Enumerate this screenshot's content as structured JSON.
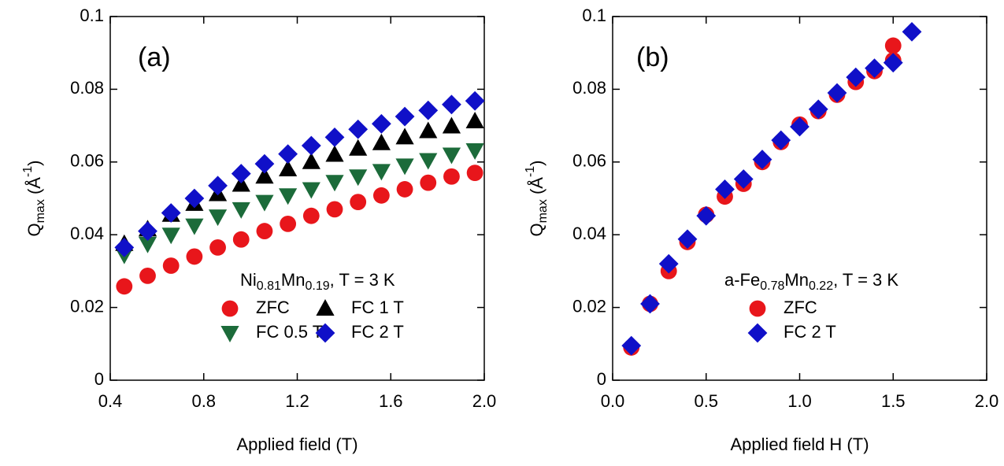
{
  "chart_data": [
    {
      "type": "scatter",
      "annotation": "(a)",
      "x_label": "Applied field (T)",
      "y_label": [
        {
          "text": "Q"
        },
        {
          "text": "max",
          "sub": true
        },
        {
          "text": " (Å"
        },
        {
          "text": "-1",
          "sup": true
        },
        {
          "text": ")"
        }
      ],
      "legend_title": [
        {
          "text": "Ni"
        },
        {
          "text": "0.81",
          "sub": true
        },
        {
          "text": "Mn"
        },
        {
          "text": "0.19",
          "sub": true
        },
        {
          "text": ", T = 3 K"
        }
      ],
      "xlim": [
        0.4,
        2.0
      ],
      "ylim": [
        0,
        0.1
      ],
      "xticks": [
        0.4,
        0.8,
        1.2,
        1.6,
        {
          "value": 2.0,
          "label": "2.0"
        }
      ],
      "yticks": [
        0,
        0.02,
        0.04,
        0.06,
        0.08,
        0.1
      ],
      "series": [
        {
          "name": "ZFC",
          "color": "#e8161b",
          "marker": "circle",
          "x": [
            0.46,
            0.56,
            0.66,
            0.76,
            0.86,
            0.96,
            1.06,
            1.16,
            1.26,
            1.36,
            1.46,
            1.56,
            1.66,
            1.76,
            1.86,
            1.96
          ],
          "values": [
            0.0258,
            0.0287,
            0.0315,
            0.034,
            0.0365,
            0.0387,
            0.041,
            0.043,
            0.0452,
            0.047,
            0.049,
            0.0508,
            0.0525,
            0.0543,
            0.056,
            0.057
          ]
        },
        {
          "name": "FC 0.5 T",
          "color": "#1c6b3a",
          "marker": "triangle-down",
          "x": [
            0.46,
            0.56,
            0.66,
            0.76,
            0.86,
            0.96,
            1.06,
            1.16,
            1.26,
            1.36,
            1.46,
            1.56,
            1.66,
            1.76,
            1.86,
            1.96
          ],
          "values": [
            0.0345,
            0.0375,
            0.04,
            0.0425,
            0.045,
            0.047,
            0.049,
            0.0508,
            0.0525,
            0.0545,
            0.056,
            0.0575,
            0.059,
            0.0605,
            0.062,
            0.0632
          ]
        },
        {
          "name": "FC 1 T",
          "color": "#000000",
          "marker": "triangle-up",
          "x": [
            0.46,
            0.56,
            0.66,
            0.76,
            0.86,
            0.96,
            1.06,
            1.16,
            1.26,
            1.36,
            1.46,
            1.56,
            1.66,
            1.76,
            1.86,
            1.96
          ],
          "values": [
            0.0375,
            0.0415,
            0.0455,
            0.0485,
            0.0512,
            0.0538,
            0.056,
            0.058,
            0.06,
            0.062,
            0.0637,
            0.0652,
            0.0668,
            0.0685,
            0.0698,
            0.0712
          ]
        },
        {
          "name": "FC 2 T",
          "color": "#1010c8",
          "marker": "diamond",
          "x": [
            0.46,
            0.56,
            0.66,
            0.76,
            0.86,
            0.96,
            1.06,
            1.16,
            1.26,
            1.36,
            1.46,
            1.56,
            1.66,
            1.76,
            1.86,
            1.96
          ],
          "values": [
            0.0365,
            0.041,
            0.046,
            0.05,
            0.0535,
            0.0568,
            0.0595,
            0.0622,
            0.0645,
            0.0668,
            0.069,
            0.0705,
            0.0725,
            0.0742,
            0.0758,
            0.0768
          ]
        }
      ]
    },
    {
      "type": "scatter",
      "annotation": "(b)",
      "x_label": "Applied field H (T)",
      "y_label": [
        {
          "text": "Q"
        },
        {
          "text": "max",
          "sub": true
        },
        {
          "text": " (Å"
        },
        {
          "text": "-1",
          "sup": true
        },
        {
          "text": ")"
        }
      ],
      "legend_title": [
        {
          "text": "a-Fe"
        },
        {
          "text": "0.78",
          "sub": true
        },
        {
          "text": "Mn"
        },
        {
          "text": "0.22",
          "sub": true
        },
        {
          "text": ", T = 3 K"
        }
      ],
      "xlim": [
        0.0,
        2.0
      ],
      "ylim": [
        0,
        0.1
      ],
      "xticks": [
        {
          "value": 0.0,
          "label": "0.0"
        },
        0.5,
        {
          "value": 1.0,
          "label": "1.0"
        },
        1.5,
        {
          "value": 2.0,
          "label": "2.0"
        }
      ],
      "yticks": [
        0,
        0.02,
        0.04,
        0.06,
        0.08,
        0.1
      ],
      "series": [
        {
          "name": "ZFC",
          "color": "#e8161b",
          "marker": "circle",
          "x": [
            0.1,
            0.2,
            0.3,
            0.4,
            0.5,
            0.6,
            0.7,
            0.8,
            0.9,
            1.0,
            1.1,
            1.2,
            1.3,
            1.4,
            1.5,
            1.5
          ],
          "values": [
            0.009,
            0.021,
            0.03,
            0.038,
            0.0455,
            0.0505,
            0.054,
            0.06,
            0.0655,
            0.0703,
            0.074,
            0.0785,
            0.082,
            0.085,
            0.092,
            0.088
          ]
        },
        {
          "name": "FC 2 T",
          "color": "#1010c8",
          "marker": "diamond",
          "x": [
            0.1,
            0.2,
            0.3,
            0.4,
            0.5,
            0.6,
            0.7,
            0.8,
            0.9,
            1.0,
            1.1,
            1.2,
            1.3,
            1.4,
            1.5,
            1.6
          ],
          "values": [
            0.0095,
            0.021,
            0.032,
            0.0388,
            0.0452,
            0.0525,
            0.0553,
            0.0607,
            0.066,
            0.0697,
            0.0745,
            0.079,
            0.0833,
            0.0858,
            0.0873,
            0.0958
          ]
        }
      ]
    }
  ]
}
